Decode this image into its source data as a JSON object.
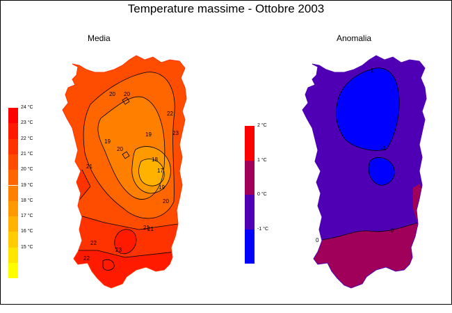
{
  "title": "Temperature massime - Ottobre 2003",
  "panels": {
    "media": {
      "label": "Media",
      "legend": [
        {
          "label": "24 °C",
          "color": "#ff0000"
        },
        {
          "label": "23 °C",
          "color": "#ff1a00"
        },
        {
          "label": "22 °C",
          "color": "#ff3300"
        },
        {
          "label": "21 °C",
          "color": "#ff4d00"
        },
        {
          "label": "20 °C",
          "color": "#ff6600"
        },
        {
          "label": "19 °C",
          "color": "#ff8000"
        },
        {
          "label": "18 °C",
          "color": "#ff9900"
        },
        {
          "label": "17 °C",
          "color": "#ffb300"
        },
        {
          "label": "16 °C",
          "color": "#ffcc00"
        },
        {
          "label": "15 °C",
          "color": "#ffe600"
        },
        {
          "label": "",
          "color": "#ffff00"
        }
      ],
      "contour_labels": [
        "20",
        "20",
        "19",
        "20",
        "21",
        "19",
        "22",
        "17",
        "18",
        "19",
        "20",
        "21",
        "21",
        "22",
        "23",
        "22",
        "23"
      ]
    },
    "anomalia": {
      "label": "Anomalia",
      "legend": [
        {
          "label": "2 °C",
          "color": "#ff0000"
        },
        {
          "label": "1 °C",
          "color": "#a0005a"
        },
        {
          "label": "0 °C",
          "color": "#5000b4"
        },
        {
          "label": "-1 °C",
          "color": "#0000ff"
        }
      ],
      "contour_labels": [
        "-1",
        "-1",
        "0",
        "0"
      ],
      "region_colors": {
        "base": "#5000b4",
        "cool": "#0000ff",
        "warm": "#a0005a"
      }
    }
  }
}
